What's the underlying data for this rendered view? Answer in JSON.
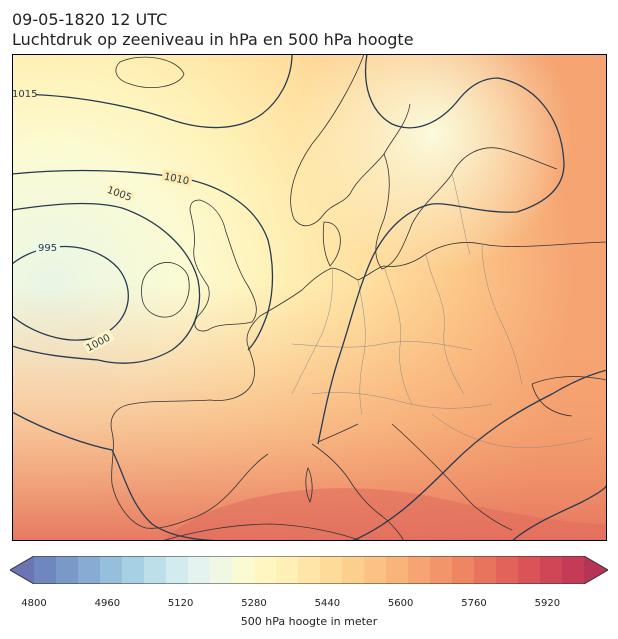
{
  "header": {
    "datetime": "09-05-1820 12 UTC",
    "subtitle": "Luchtdruk op zeeniveau in hPa en 500 hPa hoogte"
  },
  "map": {
    "region": "Europa / Noord-Atlantische Oceaan",
    "isobar_labels": [
      "1015",
      "1010",
      "1005",
      "995",
      "1000"
    ],
    "low_pressure_center_hpa": 995,
    "fill_variable": "500 hPa hoogte",
    "colors": {
      "low_height": "#e9f6e6",
      "mid_height": "#fff6c2",
      "high_height": "#e87d66",
      "isobar": "#253a52",
      "coastline": "#333333",
      "borders": "#8a8a8a"
    }
  },
  "colorbar": {
    "ticks": [
      "4800",
      "4960",
      "5120",
      "5280",
      "5440",
      "5600",
      "5760",
      "5920"
    ],
    "range": [
      4800,
      6000
    ],
    "step": 40,
    "label": "500 hPa hoogte in meter",
    "palette": [
      "#6b74b5",
      "#6f86be",
      "#7a98c8",
      "#87abd2",
      "#96bfdc",
      "#a7d0e4",
      "#bddfea",
      "#d2ebef",
      "#e4f3ef",
      "#f0f8e4",
      "#fbfbd3",
      "#fff6c2",
      "#fff0b6",
      "#ffe6a8",
      "#ffdb99",
      "#fdcf8c",
      "#fbc283",
      "#f9b47a",
      "#f6a572",
      "#f3956a",
      "#ee8563",
      "#e9745e",
      "#e2635a",
      "#d95357",
      "#cf4656",
      "#c33b56",
      "#b83456"
    ]
  }
}
